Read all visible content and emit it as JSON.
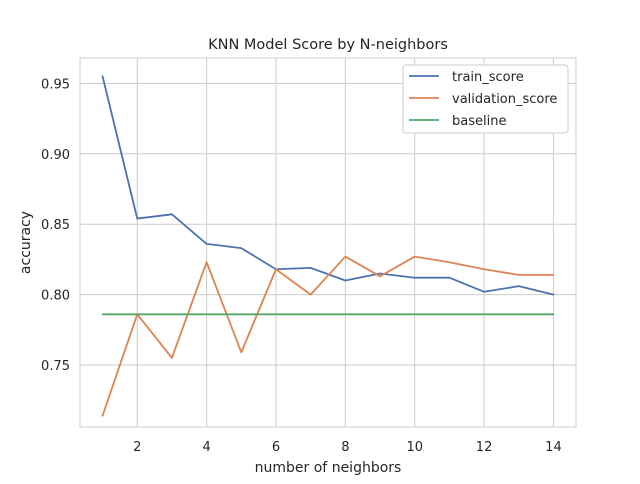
{
  "chart_data": {
    "type": "line",
    "title": "KNN Model Score by N-neighbors",
    "xlabel": "number of neighbors",
    "ylabel": "accuracy",
    "x": [
      1,
      2,
      3,
      4,
      5,
      6,
      7,
      8,
      9,
      10,
      11,
      12,
      13,
      14
    ],
    "xlim": [
      0.35,
      14.65
    ],
    "ylim": [
      0.706,
      0.968
    ],
    "xticks": [
      2,
      4,
      6,
      8,
      10,
      12,
      14
    ],
    "yticks": [
      0.75,
      0.8,
      0.85,
      0.9,
      0.95
    ],
    "xtick_labels": [
      "2",
      "4",
      "6",
      "8",
      "10",
      "12",
      "14"
    ],
    "ytick_labels": [
      "0.75",
      "0.80",
      "0.85",
      "0.90",
      "0.95"
    ],
    "grid": true,
    "legend_position": "top-right",
    "series": [
      {
        "name": "train_score",
        "color": "#4c72b0",
        "values": [
          0.955,
          0.854,
          0.857,
          0.836,
          0.833,
          0.818,
          0.819,
          0.81,
          0.815,
          0.812,
          0.812,
          0.802,
          0.806,
          0.8
        ]
      },
      {
        "name": "validation_score",
        "color": "#dd8452",
        "values": [
          0.714,
          0.786,
          0.755,
          0.823,
          0.759,
          0.818,
          0.8,
          0.827,
          0.813,
          0.827,
          0.823,
          0.818,
          0.814,
          0.814
        ]
      },
      {
        "name": "baseline",
        "color": "#55a868",
        "values": [
          0.786,
          0.786,
          0.786,
          0.786,
          0.786,
          0.786,
          0.786,
          0.786,
          0.786,
          0.786,
          0.786,
          0.786,
          0.786,
          0.786
        ]
      }
    ]
  }
}
